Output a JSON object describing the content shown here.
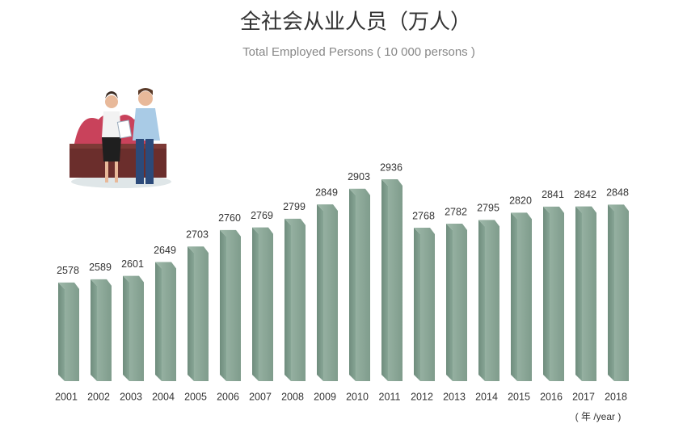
{
  "chart_data": {
    "type": "bar",
    "title": "全社会从业人员（万人）",
    "subtitle": "Total Employed Persons ( 10 000 persons )",
    "x_unit": "( 年 /year )",
    "categories": [
      "2001",
      "2002",
      "2003",
      "2004",
      "2005",
      "2006",
      "2007",
      "2008",
      "2009",
      "2010",
      "2011",
      "2012",
      "2013",
      "2014",
      "2015",
      "2016",
      "2017",
      "2018"
    ],
    "values": [
      2578,
      2589,
      2601,
      2649,
      2703,
      2760,
      2769,
      2799,
      2849,
      2903,
      2936,
      2768,
      2782,
      2795,
      2820,
      2841,
      2842,
      2848
    ]
  }
}
